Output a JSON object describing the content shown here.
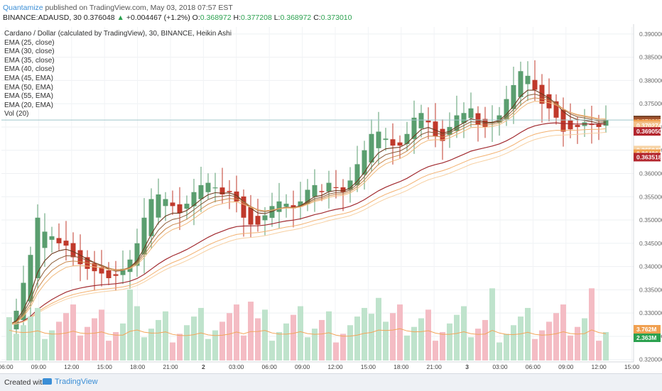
{
  "header": {
    "publisher": "Quantamize",
    "published_text": "published on TradingView.com, May 03, 2018 07:57 EST",
    "symbol": "BINANCE:ADAUSD, 30",
    "last": "0.376048",
    "change": "+0.004467 (+1.2%)",
    "o_label": "O:",
    "o": "0.368972",
    "h_label": "H:",
    "h": "0.377208",
    "l_label": "L:",
    "l": "0.368972",
    "c_label": "C:",
    "c": "0.373010"
  },
  "footer": {
    "created_with": "Created with",
    "brand": "TradingView"
  },
  "chart_data": {
    "type": "candlestick",
    "title": "Cardano / Dollar (calculated by TradingView), 30, BINANCE, Heikin Ashi",
    "indicators": [
      "EMA (25, close)",
      "EMA (30, close)",
      "EMA (35, close)",
      "EMA (40, close)",
      "EMA (45, EMA)",
      "EMA (50, EMA)",
      "EMA (55, EMA)",
      "EMA (20, EMA)",
      "Vol (20)"
    ],
    "ylim": [
      0.3195,
      0.3915
    ],
    "y_ticks": [
      "0.390000",
      "0.385000",
      "0.380000",
      "0.375000",
      "0.370000",
      "0.365000",
      "0.360000",
      "0.355000",
      "0.350000",
      "0.345000",
      "0.340000",
      "0.335000",
      "0.330000",
      "0.325000",
      "0.320000"
    ],
    "x_ticks": [
      "06:00",
      "09:00",
      "12:00",
      "15:00",
      "18:00",
      "21:00",
      "2",
      "03:00",
      "06:00",
      "09:00",
      "12:00",
      "15:00",
      "18:00",
      "21:00",
      "3",
      "03:00",
      "06:00",
      "09:00",
      "12:00",
      "15:00"
    ],
    "candle_close_path": [
      0.3275,
      0.3305,
      0.3365,
      0.3425,
      0.3505,
      0.3475,
      0.3465,
      0.345,
      0.3445,
      0.342,
      0.3405,
      0.3395,
      0.339,
      0.3385,
      0.3375,
      0.338,
      0.3395,
      0.3415,
      0.345,
      0.3505,
      0.3545,
      0.3555,
      0.3545,
      0.353,
      0.3515,
      0.3535,
      0.356,
      0.3575,
      0.358,
      0.357,
      0.3555,
      0.356,
      0.354,
      0.3505,
      0.349,
      0.349,
      0.351,
      0.353,
      0.354,
      0.3535,
      0.3525,
      0.354,
      0.3565,
      0.3575,
      0.356,
      0.358,
      0.357,
      0.356,
      0.3585,
      0.362,
      0.365,
      0.3685,
      0.369,
      0.3675,
      0.366,
      0.366,
      0.3685,
      0.372,
      0.373,
      0.371,
      0.368,
      0.367,
      0.37,
      0.3725,
      0.373,
      0.374,
      0.3705,
      0.37,
      0.371,
      0.3725,
      0.376,
      0.379,
      0.382,
      0.381,
      0.378,
      0.375,
      0.374,
      0.372,
      0.369,
      0.3695,
      0.37,
      0.371,
      0.3705,
      0.37,
      0.3715
    ],
    "price_labels": [
      {
        "value": "0.371500",
        "color": "#6d3a1e"
      },
      {
        "value": "0.371227",
        "color": "#a0522d"
      },
      {
        "value": "0.370682",
        "color": "#f0a050"
      },
      {
        "value": "0.370274",
        "color": "#f3c08a"
      },
      {
        "value": "0.369050",
        "color": "#b3262e"
      },
      {
        "value": "0.365045",
        "color": "#f6d3a5"
      },
      {
        "value": "0.364264",
        "color": "#f0a050"
      },
      {
        "value": "0.363518",
        "color": "#b3262e"
      }
    ],
    "volume_labels": [
      {
        "value": "3.762M",
        "color": "#f0a050"
      },
      {
        "value": "2.363M",
        "color": "#2ba14f"
      }
    ],
    "colors": {
      "up": "#5a9e6f",
      "down": "#c0392b",
      "ema_dark": "#6d3a1e",
      "ema_mid": "#c9874a",
      "ema_light": "#f0b87a",
      "ema_red": "#a12a2f",
      "vol_up": "#bfe3cc",
      "vol_down": "#f4bcc4",
      "vol_ma": "#f2a55a"
    }
  }
}
